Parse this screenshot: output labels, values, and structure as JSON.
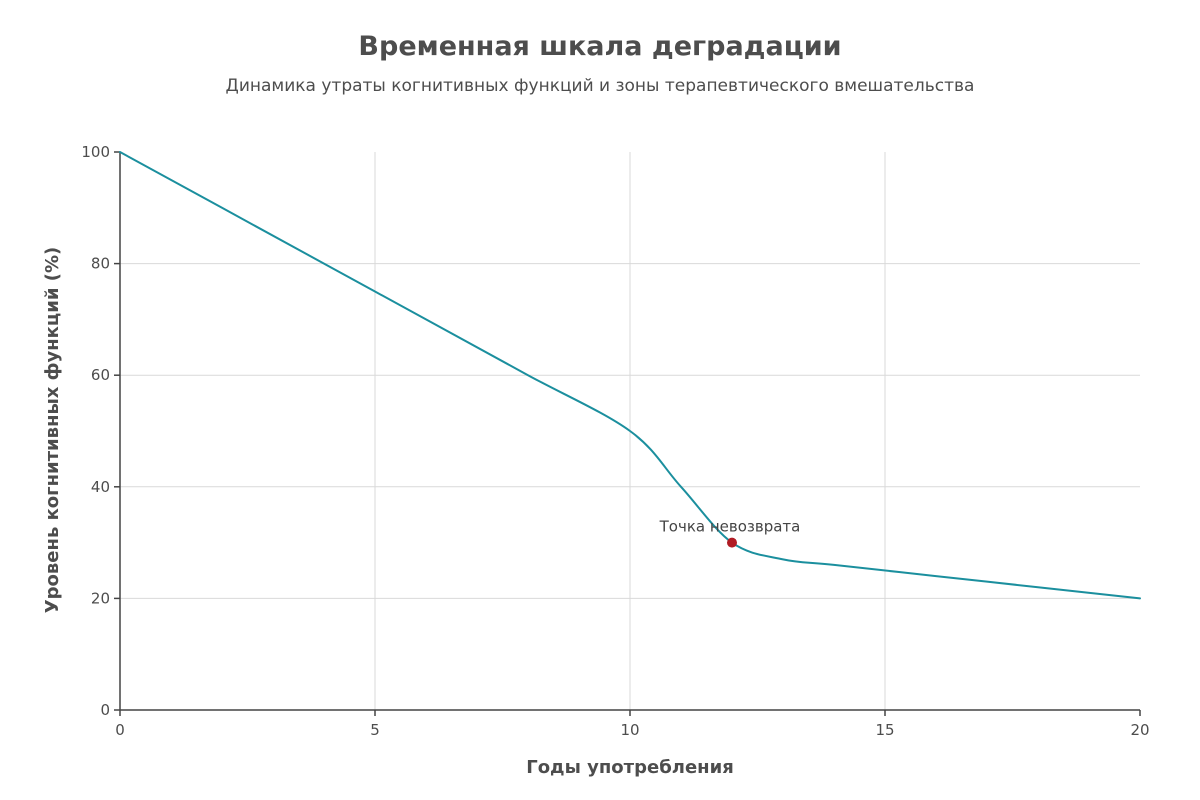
{
  "chart_data": {
    "type": "line",
    "title": "Временная шкала деградации",
    "subtitle": "Динамика утраты когнитивных функций и зоны терапевтического вмешательства",
    "xlabel": "Годы употребления",
    "ylabel": "Уровень когнитивных функций (%)",
    "xlim": [
      0,
      20
    ],
    "ylim": [
      0,
      100
    ],
    "x_ticks": [
      0,
      5,
      10,
      15,
      20
    ],
    "y_ticks": [
      0,
      20,
      40,
      60,
      80,
      100
    ],
    "grid": true,
    "series": [
      {
        "name": "Уровень когнитивных функций",
        "x": [
          0,
          2,
          4,
          6,
          8,
          10,
          11,
          12,
          13,
          14,
          16,
          18,
          20
        ],
        "values": [
          100,
          90,
          80,
          70,
          60,
          50,
          40,
          30,
          27,
          26,
          24,
          22,
          20
        ],
        "color": "#1b8f9e"
      }
    ],
    "annotations": [
      {
        "label": "Точка невозврата",
        "x": 12,
        "y": 30,
        "color": "#b01c24"
      }
    ]
  }
}
